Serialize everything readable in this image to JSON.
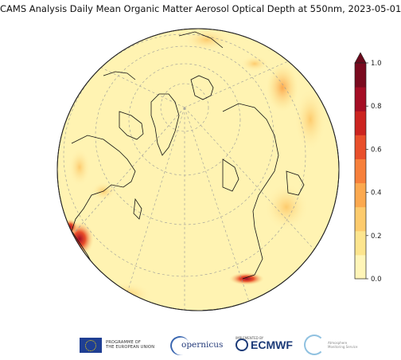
{
  "title": "CAMS Analysis Daily Mean Organic Matter Aerosol Optical Depth at 550nm, 2023-05-01",
  "colorbar": {
    "ticks": [
      "0.0",
      "0.2",
      "0.4",
      "0.6",
      "0.8",
      "1.0"
    ],
    "colors": [
      "#fff5b8",
      "#fde58e",
      "#fdcb6d",
      "#fca94f",
      "#f7803b",
      "#e94f2b",
      "#cc2420",
      "#a50e25",
      "#7a0a1f"
    ]
  },
  "map": {
    "projection": "orthographic",
    "background_color": "#fff3b2",
    "coastline_color": "#111111",
    "grid_style": "dashed"
  },
  "footer": {
    "eu_line1": "PROGRAMME OF",
    "eu_line2": "THE EUROPEAN UNION",
    "copernicus": "opernicus",
    "ecmwf_small": "IMPLEMENTED BY",
    "ecmwf": "ECMWF",
    "atmosphere_line1": "Atmosphere",
    "atmosphere_line2": "Monitoring Service"
  }
}
